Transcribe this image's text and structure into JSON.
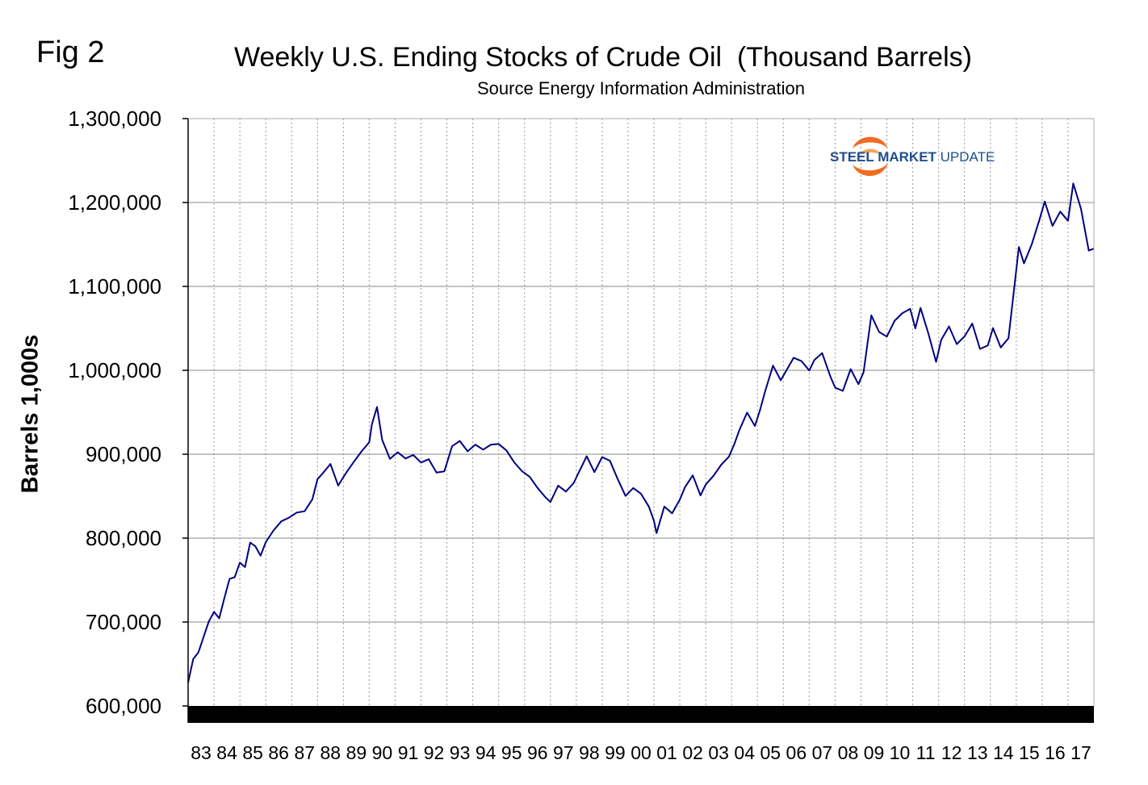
{
  "fig_label": "Fig 2",
  "logo": {
    "bold": "STEEL MARKET",
    "light": "UPDATE"
  },
  "colors": {
    "line": "#000080",
    "grid": "#999999",
    "band": "#000000",
    "logo_orange": "#f26b21",
    "logo_blue": "#1f4e8c"
  },
  "chart_data": {
    "type": "line",
    "title": "Weekly U.S. Ending Stocks of Crude Oil  (Thousand Barrels)",
    "subtitle": "Source Energy Information Administration",
    "xlabel": "",
    "ylabel": "Barrels 1,000s",
    "ylim": [
      600000,
      1300000
    ],
    "xlim": [
      1983,
      2018
    ],
    "yticks": [
      600000,
      700000,
      800000,
      900000,
      1000000,
      1100000,
      1200000,
      1300000
    ],
    "ytick_labels": [
      "600,000",
      "700,000",
      "800,000",
      "900,000",
      "1,000,000",
      "1,100,000",
      "1,200,000",
      "1,300,000"
    ],
    "xtick_labels": [
      "83",
      "84",
      "85",
      "86",
      "87",
      "88",
      "89",
      "90",
      "91",
      "92",
      "93",
      "94",
      "95",
      "96",
      "97",
      "98",
      "99",
      "00",
      "01",
      "02",
      "03",
      "04",
      "05",
      "06",
      "07",
      "08",
      "09",
      "10",
      "11",
      "12",
      "13",
      "14",
      "15",
      "16",
      "17"
    ],
    "grid": true,
    "series": [
      {
        "name": "Ending Stocks of Crude Oil",
        "x": [
          1983.0,
          1983.2,
          1983.4,
          1983.6,
          1983.8,
          1984.0,
          1984.2,
          1984.4,
          1984.6,
          1984.8,
          1985.0,
          1985.2,
          1985.4,
          1985.6,
          1985.8,
          1986.0,
          1986.3,
          1986.6,
          1986.9,
          1987.2,
          1987.5,
          1987.8,
          1988.0,
          1988.2,
          1988.5,
          1988.8,
          1989.1,
          1989.4,
          1989.7,
          1990.0,
          1990.1,
          1990.3,
          1990.5,
          1990.8,
          1991.1,
          1991.4,
          1991.7,
          1992.0,
          1992.3,
          1992.6,
          1992.9,
          1993.2,
          1993.5,
          1993.8,
          1994.1,
          1994.4,
          1994.7,
          1995.0,
          1995.3,
          1995.6,
          1995.9,
          1996.2,
          1996.5,
          1996.8,
          1997.0,
          1997.3,
          1997.6,
          1997.9,
          1998.1,
          1998.4,
          1998.7,
          1999.0,
          1999.3,
          1999.6,
          1999.9,
          2000.2,
          2000.5,
          2000.8,
          2001.0,
          2001.1,
          2001.4,
          2001.7,
          2002.0,
          2002.2,
          2002.5,
          2002.8,
          2003.0,
          2003.3,
          2003.6,
          2003.9,
          2004.1,
          2004.3,
          2004.6,
          2004.9,
          2005.1,
          2005.3,
          2005.6,
          2005.9,
          2006.1,
          2006.4,
          2006.7,
          2007.0,
          2007.2,
          2007.5,
          2007.8,
          2008.0,
          2008.3,
          2008.6,
          2008.9,
          2009.1,
          2009.4,
          2009.7,
          2010.0,
          2010.3,
          2010.6,
          2010.9,
          2011.1,
          2011.3,
          2011.6,
          2011.9,
          2012.1,
          2012.4,
          2012.7,
          2013.0,
          2013.3,
          2013.6,
          2013.9,
          2014.1,
          2014.4,
          2014.7,
          2015.0,
          2015.1,
          2015.3,
          2015.6,
          2015.9,
          2016.1,
          2016.4,
          2016.7,
          2017.0,
          2017.2,
          2017.5,
          2017.8,
          2018.0
        ],
        "values": [
          628000,
          655000,
          662000,
          680000,
          698000,
          710000,
          703000,
          728000,
          752000,
          755000,
          773000,
          768000,
          797000,
          792000,
          780000,
          795000,
          808000,
          818000,
          822000,
          828000,
          830000,
          845000,
          870000,
          878000,
          890000,
          865000,
          880000,
          893000,
          905000,
          915000,
          935000,
          955000,
          915000,
          892000,
          900000,
          893000,
          898000,
          890000,
          895000,
          880000,
          882000,
          912000,
          918000,
          905000,
          912000,
          905000,
          910000,
          910000,
          902000,
          888000,
          878000,
          872000,
          860000,
          850000,
          845000,
          865000,
          858000,
          868000,
          880000,
          898000,
          878000,
          895000,
          890000,
          868000,
          848000,
          858000,
          852000,
          838000,
          822000,
          808000,
          840000,
          832000,
          848000,
          862000,
          875000,
          850000,
          862000,
          872000,
          885000,
          895000,
          910000,
          928000,
          950000,
          935000,
          955000,
          978000,
          1008000,
          990000,
          1000000,
          1015000,
          1010000,
          998000,
          1010000,
          1018000,
          992000,
          978000,
          975000,
          1002000,
          985000,
          1000000,
          1068000,
          1048000,
          1042000,
          1060000,
          1068000,
          1072000,
          1048000,
          1072000,
          1042000,
          1008000,
          1035000,
          1052000,
          1032000,
          1042000,
          1058000,
          1028000,
          1032000,
          1052000,
          1028000,
          1038000,
          1118000,
          1145000,
          1125000,
          1148000,
          1178000,
          1200000,
          1172000,
          1190000,
          1180000,
          1225000,
          1195000,
          1145000,
          1145000
        ]
      }
    ]
  }
}
